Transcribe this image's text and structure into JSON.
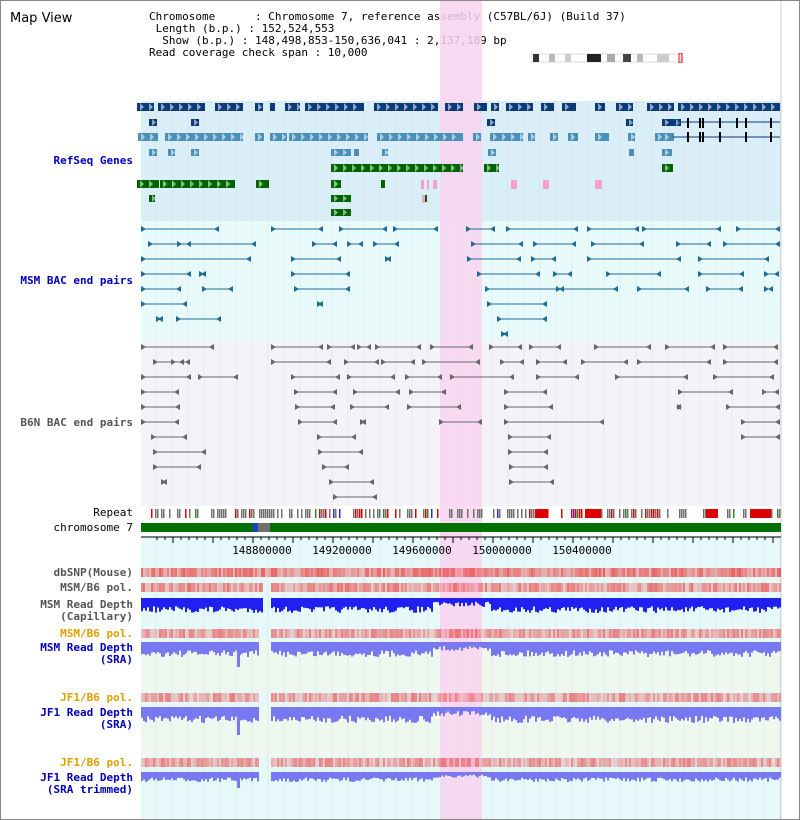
{
  "title": "Map View",
  "info": {
    "chromosome": "Chromosome      : Chromosome 7, reference assembly (C57BL/6J) (Build 37)",
    "length": " Length (b.p.) : 152,524,553",
    "show": "  Show (b.p.) : 148,498,853-150,636,041 : 2,137,189 bp",
    "coverage": "Read coverage check span : 10,000"
  },
  "tracks": {
    "refseq": "RefSeq Genes",
    "msm_bac": "MSM BAC end pairs",
    "b6n_bac": "B6N BAC end pairs",
    "repeat": "Repeat",
    "chromosome": "chromosome 7",
    "dbsnp": "dbSNP(Mouse)",
    "msm_b6_pol": "MSM/B6 pol.",
    "msm_depth_cap_1": "MSM Read Depth",
    "msm_depth_cap_2": "(Capillary)",
    "msm_b6_pol_sra": "MSM/B6 pol.",
    "msm_depth_sra_1": "MSM Read Depth",
    "msm_depth_sra_2": "(SRA)",
    "jf1_b6_pol": "JF1/B6 pol.",
    "jf1_depth_sra_1": "JF1 Read Depth",
    "jf1_depth_sra_2": "(SRA)",
    "jf1_b6_pol_trim": "JF1/B6 pol.",
    "jf1_depth_trim_1": "JF1 Read Depth",
    "jf1_depth_trim_2": "(SRA trimmed)"
  },
  "axis_ticks": [
    "148800000",
    "149200000",
    "149600000",
    "150000000",
    "150400000"
  ],
  "colors": {
    "refseq_bg": "#daeef8",
    "msm_bg": "#e8fafa",
    "b6n_bg": "#f4f4f8",
    "highlight": "#f8d4f0",
    "gene_dark": "#0a3a78",
    "gene_mid": "#4a90b8",
    "gene_green": "#006400",
    "chrom_green": "#007000",
    "depth_blue": "#2020f0",
    "depth_purple": "#7878f0"
  }
}
